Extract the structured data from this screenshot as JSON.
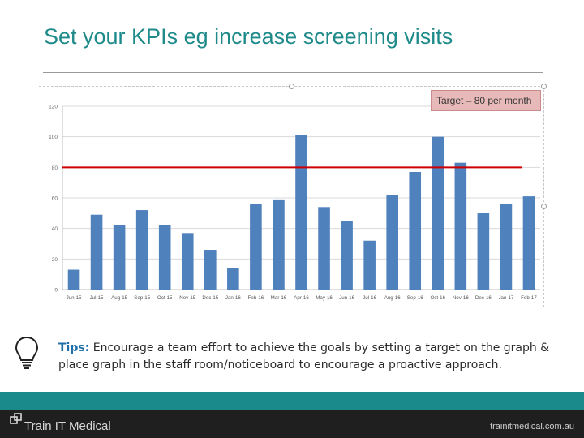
{
  "slide": {
    "title": "Set your KPIs eg increase screening visits",
    "tips_label": "Tips:",
    "tips_text": " Encourage a team effort to achieve the goals by setting a target on the graph & place graph in the staff room/noticeboard to encourage a proactive approach.",
    "brand": "Train IT Medical",
    "website": "trainitmedical.com.au",
    "colors": {
      "title": "#1e8a8a",
      "bar": "#4f81bd",
      "target_line": "#cc0000",
      "footer_teal": "#1a8a8a",
      "footer_dark": "#1f1f1f"
    }
  },
  "chart_data": {
    "type": "bar",
    "categories": [
      "Jun-15",
      "Jul-15",
      "Aug-15",
      "Sep-15",
      "Oct-15",
      "Nov-15",
      "Dec-15",
      "Jan-16",
      "Feb-16",
      "Mar-16",
      "Apr-16",
      "May-16",
      "Jun-16",
      "Jul-16",
      "Aug-16",
      "Sep-16",
      "Oct-16",
      "Nov-16",
      "Dec-16",
      "Jan-17",
      "Feb-17"
    ],
    "values": [
      13,
      49,
      42,
      52,
      42,
      37,
      26,
      14,
      56,
      59,
      101,
      54,
      45,
      32,
      62,
      77,
      100,
      83,
      50,
      56,
      61
    ],
    "ylim": [
      0,
      120
    ],
    "yticks": [
      "0",
      "20",
      "40",
      "60",
      "80",
      "100",
      "120"
    ],
    "target": {
      "value": 80,
      "label": "Target – 80 per month"
    },
    "grid": true,
    "title": "",
    "xlabel": "",
    "ylabel": ""
  }
}
